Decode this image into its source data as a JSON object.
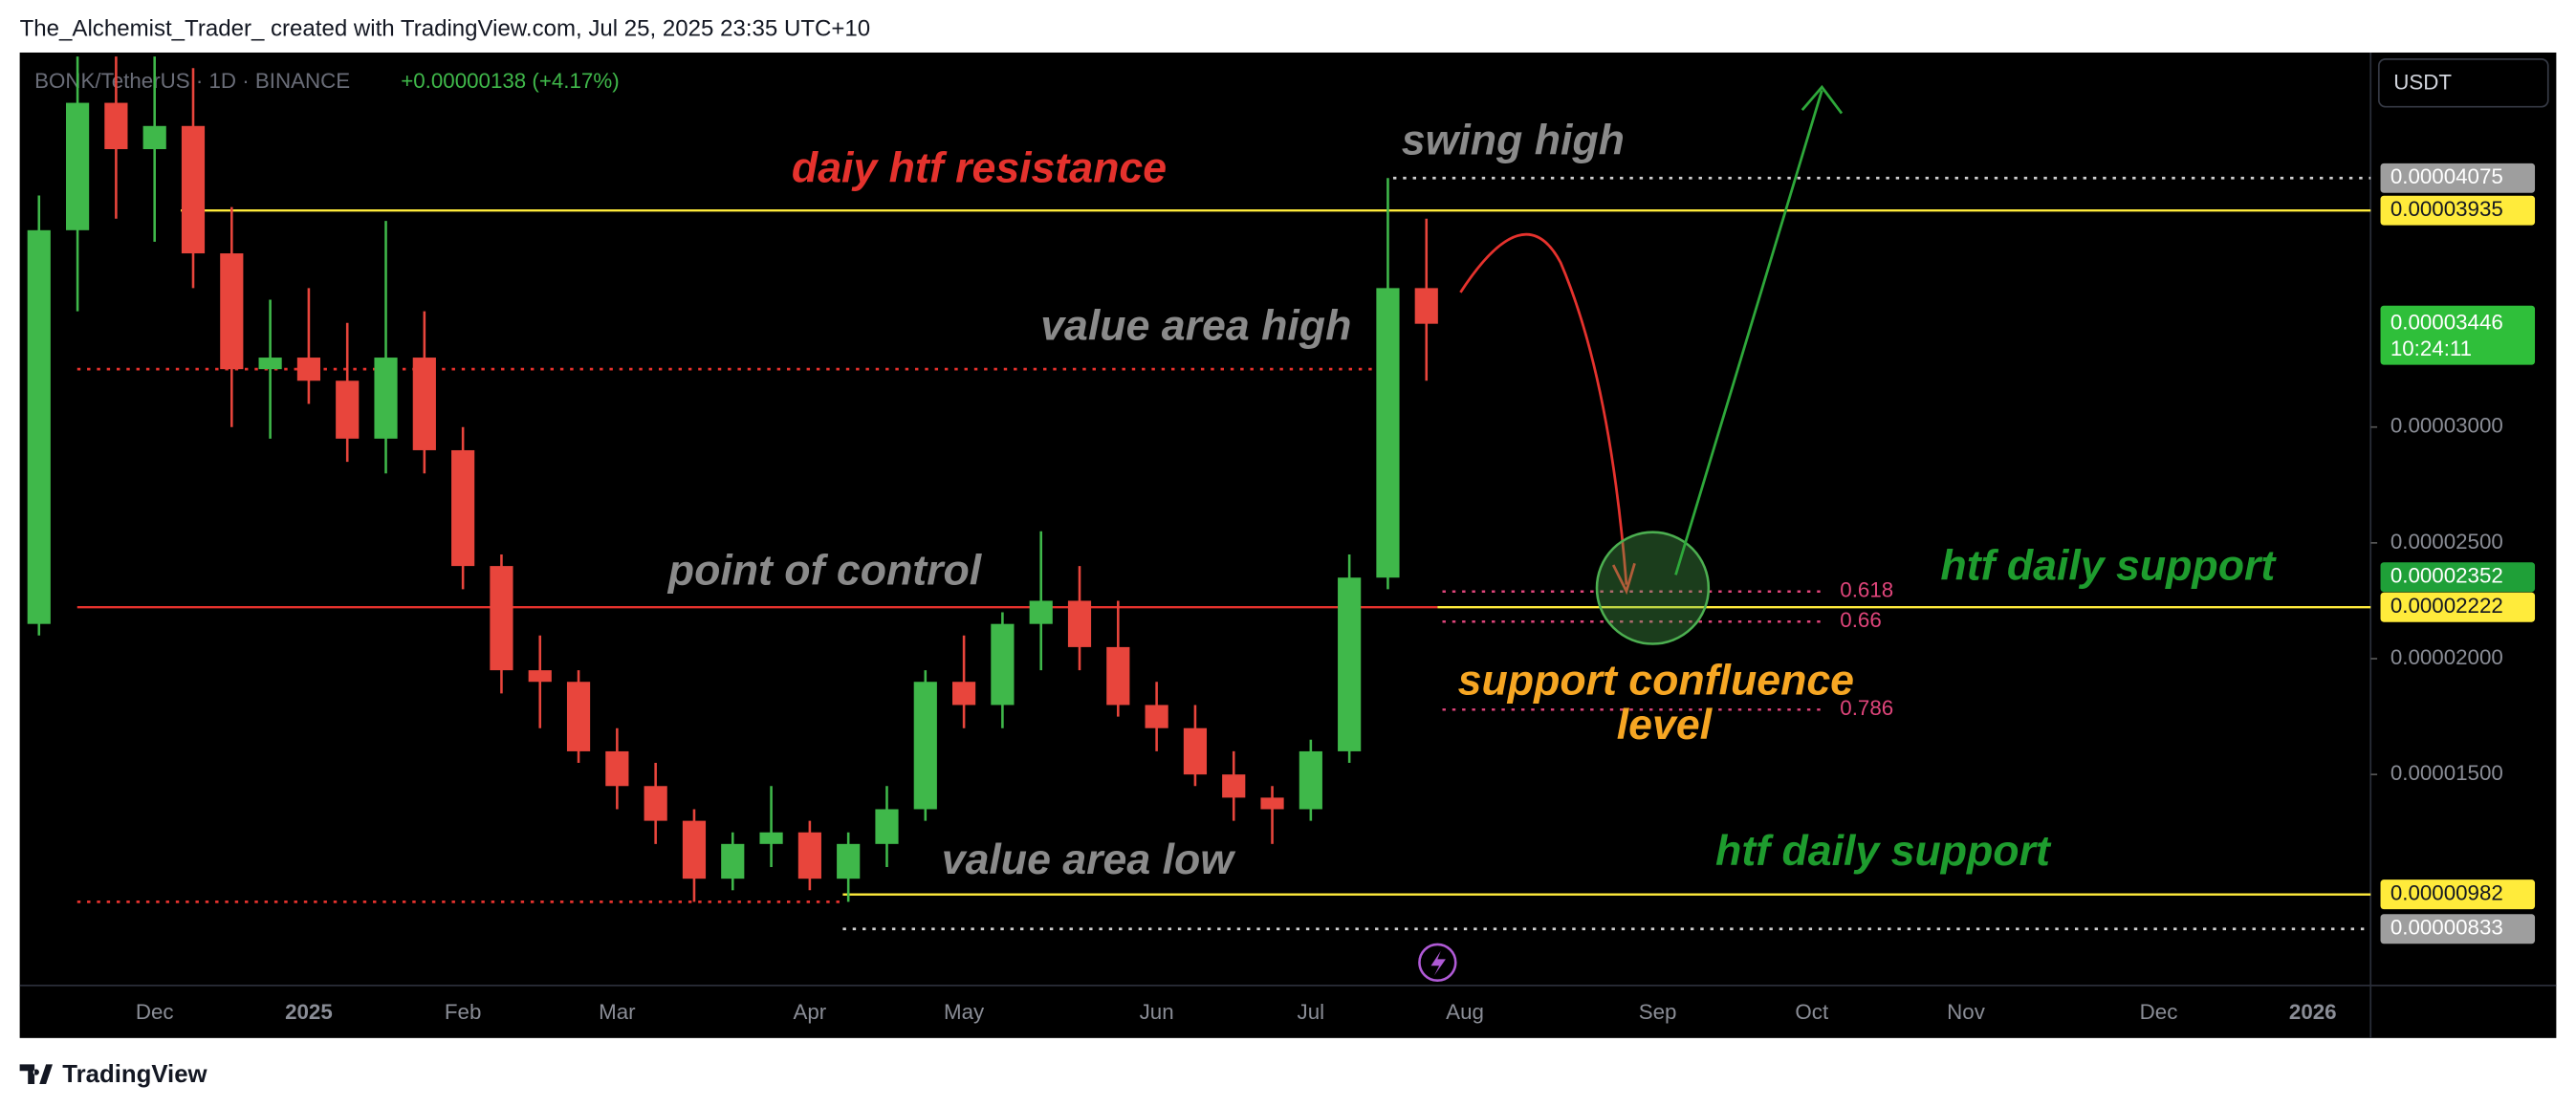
{
  "header": {
    "text": "The_Alchemist_Trader_ created with TradingView.com, Jul 25, 2025 23:35 UTC+10"
  },
  "footer": {
    "brand": "TradingView"
  },
  "chart_data": {
    "type": "candlestick",
    "symbol": "BONK/TetherUS · 1D · BINANCE",
    "change": "+0.00000138 (+4.17%)",
    "currency": "USDT",
    "up_color": "#3fb84a",
    "down_color": "#e8453c",
    "categories": [
      null,
      null,
      null,
      "Dec",
      null,
      null,
      null,
      "2025",
      null,
      null,
      null,
      "Feb",
      null,
      null,
      null,
      "Mar",
      null,
      null,
      null,
      null,
      "Apr",
      null,
      null,
      null,
      "May",
      null,
      null,
      null,
      null,
      "Jun",
      null,
      null,
      null,
      "Jul",
      null,
      null,
      null,
      "Aug",
      null,
      null,
      null,
      null,
      "Sep",
      null,
      null,
      null,
      "Oct",
      null,
      null,
      null,
      "Nov",
      null,
      null,
      null,
      null,
      "Dec",
      null,
      null,
      null,
      "2026",
      null
    ],
    "open": [
      2.15e-05,
      3.85e-05,
      4.4e-05,
      4.2e-05,
      4.3e-05,
      3.75e-05,
      3.25e-05,
      3.3e-05,
      3.2e-05,
      2.95e-05,
      3.3e-05,
      2.9e-05,
      2.4e-05,
      1.95e-05,
      1.9e-05,
      1.6e-05,
      1.45e-05,
      1.3e-05,
      1.05e-05,
      1.2e-05,
      1.25e-05,
      1.05e-05,
      1.2e-05,
      1.35e-05,
      1.9e-05,
      1.8e-05,
      2.15e-05,
      2.25e-05,
      2.05e-05,
      1.8e-05,
      1.7e-05,
      1.5e-05,
      1.4e-05,
      1.35e-05,
      1.6e-05,
      2.35e-05,
      3.6e-05,
      null,
      null,
      null,
      null,
      null,
      null,
      null,
      null,
      null,
      null,
      null,
      null,
      null,
      null,
      null,
      null,
      null,
      null,
      null,
      null,
      null,
      null,
      null,
      null
    ],
    "high": [
      4e-05,
      4.6e-05,
      4.6e-05,
      4.6e-05,
      4.55e-05,
      3.95e-05,
      3.55e-05,
      3.6e-05,
      3.45e-05,
      3.89e-05,
      3.5e-05,
      3e-05,
      2.45e-05,
      2.1e-05,
      1.95e-05,
      1.7e-05,
      1.55e-05,
      1.35e-05,
      1.25e-05,
      1.45e-05,
      1.3e-05,
      1.25e-05,
      1.45e-05,
      1.95e-05,
      2.1e-05,
      2.2e-05,
      2.55e-05,
      2.4e-05,
      2.25e-05,
      1.9e-05,
      1.8e-05,
      1.6e-05,
      1.45e-05,
      1.65e-05,
      2.45e-05,
      4.075e-05,
      3.9e-05,
      null,
      null,
      null,
      null,
      null,
      null,
      null,
      null,
      null,
      null,
      null,
      null,
      null,
      null,
      null,
      null,
      null,
      null,
      null,
      null,
      null,
      null,
      null,
      null
    ],
    "low": [
      2.1e-05,
      3.5e-05,
      3.9e-05,
      3.8e-05,
      3.6e-05,
      3e-05,
      2.95e-05,
      3.1e-05,
      2.85e-05,
      2.8e-05,
      2.8e-05,
      2.3e-05,
      1.85e-05,
      1.7e-05,
      1.55e-05,
      1.35e-05,
      1.2e-05,
      9.5e-06,
      1e-05,
      1.1e-05,
      1e-05,
      9.5e-06,
      1.1e-05,
      1.3e-05,
      1.7e-05,
      1.7e-05,
      1.95e-05,
      1.95e-05,
      1.75e-05,
      1.6e-05,
      1.45e-05,
      1.3e-05,
      1.2e-05,
      1.3e-05,
      1.55e-05,
      2.3e-05,
      3.2e-05,
      null,
      null,
      null,
      null,
      null,
      null,
      null,
      null,
      null,
      null,
      null,
      null,
      null,
      null,
      null,
      null,
      null,
      null,
      null,
      null,
      null,
      null,
      null,
      null
    ],
    "close": [
      3.85e-05,
      4.4e-05,
      4.2e-05,
      4.3e-05,
      3.75e-05,
      3.25e-05,
      3.3e-05,
      3.2e-05,
      2.95e-05,
      3.3e-05,
      2.9e-05,
      2.4e-05,
      1.95e-05,
      1.9e-05,
      1.6e-05,
      1.45e-05,
      1.3e-05,
      1.05e-05,
      1.2e-05,
      1.25e-05,
      1.05e-05,
      1.2e-05,
      1.35e-05,
      1.9e-05,
      1.8e-05,
      2.15e-05,
      2.25e-05,
      2.05e-05,
      1.8e-05,
      1.7e-05,
      1.5e-05,
      1.4e-05,
      1.35e-05,
      1.6e-05,
      2.35e-05,
      3.6e-05,
      3.446e-05,
      null,
      null,
      null,
      null,
      null,
      null,
      null,
      null,
      null,
      null,
      null,
      null,
      null,
      null,
      null,
      null,
      null,
      null,
      null,
      null,
      null,
      null,
      null,
      null
    ],
    "ylim": [
      5.89e-06,
      4.617e-05
    ],
    "yticks": [
      {
        "value": 3e-05,
        "label": "0.00003000"
      },
      {
        "value": 2.5e-05,
        "label": "0.00002500"
      },
      {
        "value": 2e-05,
        "label": "0.00002000"
      },
      {
        "value": 1.5e-05,
        "label": "0.00001500"
      }
    ],
    "price_labels": [
      {
        "value": 4.075e-05,
        "label": "0.00004075",
        "color": "#9e9e9e"
      },
      {
        "value": 3.935e-05,
        "label": "0.00003935",
        "color": "#ffeb3b"
      },
      {
        "value": 3.446e-05,
        "label": "0.00003446",
        "color": "#2fbf3a"
      },
      {
        "value": 2.352e-05,
        "label": "0.00002352",
        "color": "#1fa038"
      },
      {
        "value": 2.222e-05,
        "label": "0.00002222",
        "color": "#ffeb3b"
      },
      {
        "value": 9.82e-06,
        "label": "0.00000982",
        "color": "#ffeb3b"
      },
      {
        "value": 8.33e-06,
        "label": "0.00000833",
        "color": "#9e9e9e"
      }
    ],
    "countdown": "10:24:11",
    "lines": [
      {
        "value": 4.075e-05,
        "color": "#d0d0d0",
        "style": "dotted"
      },
      {
        "value": 3.935e-05,
        "color": "#ffeb3b",
        "style": "solid"
      },
      {
        "value": 3.25e-05,
        "color": "#e5322d",
        "style": "dotted"
      },
      {
        "value": 2.222e-05,
        "color": "#e5322d",
        "style": "solid"
      },
      {
        "value": 2.222e-05,
        "color": "#ffeb3b",
        "style": "solid"
      },
      {
        "value": 9.82e-06,
        "color": "#ffeb3b",
        "style": "solid"
      },
      {
        "value": 9.5e-06,
        "color": "#e5322d",
        "style": "dotted"
      },
      {
        "value": 8.33e-06,
        "color": "#d0d0d0",
        "style": "dotted"
      }
    ],
    "fib": [
      {
        "ratio": 0.618,
        "price": 2.29e-05
      },
      {
        "ratio": 0.66,
        "price": 2.16e-05
      },
      {
        "ratio": 0.786,
        "price": 1.78e-05
      }
    ],
    "fib_color": "#e0457b",
    "annotations": [
      {
        "text": "daiy htf resistance",
        "color": "#e5322d"
      },
      {
        "text": "swing high",
        "color": "#8a8a8a"
      },
      {
        "text": "value area high",
        "color": "#8a8a8a"
      },
      {
        "text": "point of control",
        "color": "#8a8a8a"
      },
      {
        "text": "htf daily support",
        "color": "#1e9c2e"
      },
      {
        "text": "support confluence",
        "color": "#f6a623"
      },
      {
        "text": "level",
        "color": "#f6a623"
      },
      {
        "text": "htf daily support",
        "color": "#1e9c2e"
      },
      {
        "text": "value area low",
        "color": "#8a8a8a"
      }
    ]
  }
}
